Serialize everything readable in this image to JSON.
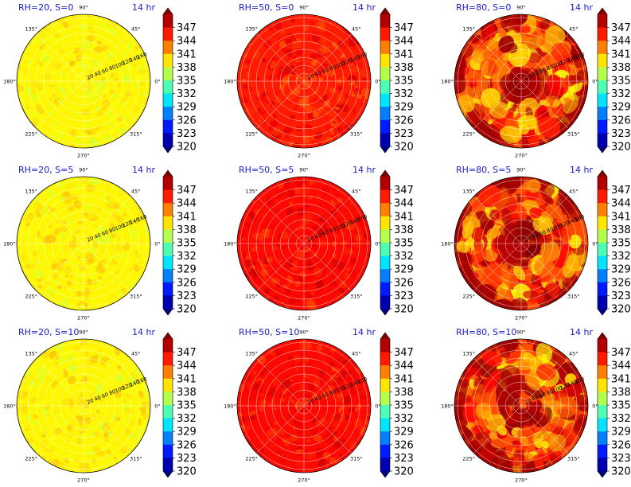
{
  "chart_data": {
    "type": "heatmap",
    "projection": "polar",
    "grid": true,
    "legend": "colorbar-right-of-each-panel",
    "colormap": "jet",
    "colorbar": {
      "ticks": [
        347,
        344,
        341,
        338,
        335,
        332,
        329,
        326,
        323,
        320
      ],
      "range": [
        320,
        350
      ],
      "extend": "both"
    },
    "angle_labels": [
      "90°",
      "45°",
      "0°",
      "315°",
      "270°",
      "225°",
      "180°",
      "135°"
    ],
    "radial_tick_labels": [
      "20",
      "40",
      "60",
      "80",
      "100",
      "120",
      "140",
      "160"
    ],
    "panels": [
      {
        "title": "RH=20, S=0",
        "time": "14 hr",
        "mean": 339.0,
        "variability": 1.5
      },
      {
        "title": "RH=50, S=0",
        "time": "14 hr",
        "mean": 345.5,
        "variability": 2.0
      },
      {
        "title": "RH=80, S=0",
        "time": "14 hr",
        "mean": 344.0,
        "variability": 5.5
      },
      {
        "title": "RH=20, S=5",
        "time": "14 hr",
        "mean": 339.0,
        "variability": 1.5
      },
      {
        "title": "RH=50, S=5",
        "time": "14 hr",
        "mean": 346.0,
        "variability": 1.8
      },
      {
        "title": "RH=80, S=5",
        "time": "14 hr",
        "mean": 344.0,
        "variability": 5.5
      },
      {
        "title": "RH=20, S=10",
        "time": "14 hr",
        "mean": 339.0,
        "variability": 1.5
      },
      {
        "title": "RH=50, S=10",
        "time": "14 hr",
        "mean": 346.0,
        "variability": 1.8
      },
      {
        "title": "RH=80, S=10",
        "time": "14 hr",
        "mean": 344.0,
        "variability": 5.5
      }
    ]
  }
}
